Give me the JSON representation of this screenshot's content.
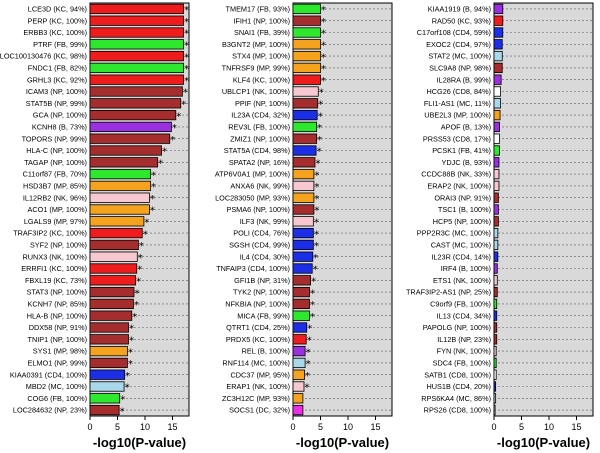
{
  "colors": {
    "KC": "#ee1c1c",
    "MP": "#f5a21f",
    "NP": "#a52d2d",
    "FB": "#2ee82e",
    "NK": "#f7c8cf",
    "B": "#9b30e0",
    "MC": "#a9d8ea",
    "CD4": "#1c2ee6",
    "CD8": "#ffffff",
    "DC": "#ec2fe6",
    "panel_bg": "#d9d9d9",
    "grid": "#5f5f5f"
  },
  "chart_data": [
    {
      "type": "bar",
      "orientation": "horizontal",
      "xlabel": "-log10(P-value)",
      "xlim": [
        0,
        18
      ],
      "xticks": [
        0,
        5,
        10,
        15
      ],
      "significance_marker": "*",
      "bars": [
        {
          "label": "LCE3D (KC, 94%)",
          "value": 17.0,
          "cell": "KC",
          "sig": true
        },
        {
          "label": "PERP (KC, 100%)",
          "value": 17.0,
          "cell": "KC",
          "sig": true
        },
        {
          "label": "ERBB3 (KC, 100%)",
          "value": 17.0,
          "cell": "KC",
          "sig": true
        },
        {
          "label": "PTRF (FB, 99%)",
          "value": 17.0,
          "cell": "FB",
          "sig": true
        },
        {
          "label": "LOC100130476 (KC, 98%)",
          "value": 17.0,
          "cell": "KC",
          "sig": true
        },
        {
          "label": "FNDC1 (FB, 82%)",
          "value": 17.0,
          "cell": "FB",
          "sig": true
        },
        {
          "label": "GRHL3 (KC, 92%)",
          "value": 17.0,
          "cell": "KC",
          "sig": true
        },
        {
          "label": "ICAM3 (NP, 100%)",
          "value": 16.8,
          "cell": "NP",
          "sig": true
        },
        {
          "label": "STAT5B (NP, 99%)",
          "value": 16.5,
          "cell": "NP",
          "sig": true
        },
        {
          "label": "GCA (NP, 100%)",
          "value": 15.6,
          "cell": "NP",
          "sig": true
        },
        {
          "label": "KCNH8 (B, 73%)",
          "value": 14.8,
          "cell": "B",
          "sig": true
        },
        {
          "label": "TOPORS (NP, 99%)",
          "value": 14.5,
          "cell": "NP",
          "sig": true
        },
        {
          "label": "HLA-C (NP, 100%)",
          "value": 13.0,
          "cell": "NP",
          "sig": true
        },
        {
          "label": "TAGAP (NP, 100%)",
          "value": 12.3,
          "cell": "NP",
          "sig": true
        },
        {
          "label": "C11orf87 (FB, 70%)",
          "value": 11.0,
          "cell": "FB",
          "sig": true
        },
        {
          "label": "HSD3B7 (MP, 85%)",
          "value": 11.0,
          "cell": "MP",
          "sig": true
        },
        {
          "label": "IL12RB2 (NK, 96%)",
          "value": 10.8,
          "cell": "NK",
          "sig": true
        },
        {
          "label": "ACO1 (MP, 100%)",
          "value": 10.8,
          "cell": "MP",
          "sig": true
        },
        {
          "label": "LGALS9 (MP, 97%)",
          "value": 9.8,
          "cell": "MP",
          "sig": true
        },
        {
          "label": "TRAF3IP2 (KC, 100%)",
          "value": 9.5,
          "cell": "KC",
          "sig": true
        },
        {
          "label": "SYF2 (NP, 100%)",
          "value": 8.8,
          "cell": "NP",
          "sig": true
        },
        {
          "label": "RUNX3 (NK, 100%)",
          "value": 8.6,
          "cell": "NK",
          "sig": true
        },
        {
          "label": "ERRFI1 (KC, 100%)",
          "value": 8.5,
          "cell": "KC",
          "sig": true
        },
        {
          "label": "FBXL19 (KC, 73%)",
          "value": 8.3,
          "cell": "KC",
          "sig": true
        },
        {
          "label": "STAT3 (NP, 100%)",
          "value": 8.0,
          "cell": "NP",
          "sig": true
        },
        {
          "label": "KCNH7 (NP, 85%)",
          "value": 7.9,
          "cell": "NP",
          "sig": true
        },
        {
          "label": "HLA-B (NP, 100%)",
          "value": 7.6,
          "cell": "NP",
          "sig": true
        },
        {
          "label": "DDX58 (NP, 91%)",
          "value": 7.0,
          "cell": "NP",
          "sig": true
        },
        {
          "label": "TNIP1 (NP, 100%)",
          "value": 7.0,
          "cell": "NP",
          "sig": true
        },
        {
          "label": "SYS1 (MP, 98%)",
          "value": 6.8,
          "cell": "MP",
          "sig": true
        },
        {
          "label": "ELMO1 (NP, 99%)",
          "value": 6.8,
          "cell": "NP",
          "sig": true
        },
        {
          "label": "KIAA0391 (CD4, 100%)",
          "value": 6.3,
          "cell": "CD4",
          "sig": true
        },
        {
          "label": "MBD2 (MC, 100%)",
          "value": 6.2,
          "cell": "MC",
          "sig": true
        },
        {
          "label": "COG6 (FB, 100%)",
          "value": 5.4,
          "cell": "FB",
          "sig": true
        },
        {
          "label": "LOC284632 (NP, 23%)",
          "value": 5.3,
          "cell": "NP",
          "sig": true
        }
      ]
    },
    {
      "type": "bar",
      "orientation": "horizontal",
      "xlabel": "-log10(P-value)",
      "xlim": [
        0,
        18
      ],
      "xticks": [
        0,
        5,
        10,
        15
      ],
      "significance_marker": "*",
      "bars": [
        {
          "label": "TMEM17 (FB, 93%)",
          "value": 5.0,
          "cell": "FB",
          "sig": true
        },
        {
          "label": "IFIH1 (NP, 100%)",
          "value": 5.0,
          "cell": "NP",
          "sig": true
        },
        {
          "label": "SNAI1 (FB, 39%)",
          "value": 5.0,
          "cell": "FB",
          "sig": true
        },
        {
          "label": "B3GNT2 (MP, 100%)",
          "value": 5.0,
          "cell": "MP",
          "sig": true
        },
        {
          "label": "STX4 (MP, 100%)",
          "value": 5.0,
          "cell": "MP",
          "sig": true
        },
        {
          "label": "TNFRSF9 (MP, 99%)",
          "value": 5.0,
          "cell": "MP",
          "sig": true
        },
        {
          "label": "KLF4 (KC, 100%)",
          "value": 5.0,
          "cell": "KC",
          "sig": true
        },
        {
          "label": "UBLCP1 (NK, 100%)",
          "value": 4.6,
          "cell": "NK",
          "sig": true
        },
        {
          "label": "PPIF (NP, 100%)",
          "value": 4.5,
          "cell": "NP",
          "sig": true
        },
        {
          "label": "IL23A (CD4, 32%)",
          "value": 4.4,
          "cell": "CD4",
          "sig": true
        },
        {
          "label": "REV3L (FB, 100%)",
          "value": 4.3,
          "cell": "FB",
          "sig": true
        },
        {
          "label": "ZMIZ1 (NP, 100%)",
          "value": 4.3,
          "cell": "NP",
          "sig": true
        },
        {
          "label": "STAT5A (CD4, 98%)",
          "value": 4.2,
          "cell": "CD4",
          "sig": true
        },
        {
          "label": "SPATA2 (NP, 16%)",
          "value": 4.0,
          "cell": "NP",
          "sig": true
        },
        {
          "label": "ATP6V0A1 (MP, 100%)",
          "value": 3.8,
          "cell": "MP",
          "sig": true
        },
        {
          "label": "ANXA6 (NK, 99%)",
          "value": 3.8,
          "cell": "NK",
          "sig": true
        },
        {
          "label": "LOC283050 (MP, 93%)",
          "value": 3.8,
          "cell": "MP",
          "sig": true
        },
        {
          "label": "PSMA6 (NP, 100%)",
          "value": 3.8,
          "cell": "NP",
          "sig": true
        },
        {
          "label": "ILF3 (NK, 99%)",
          "value": 3.7,
          "cell": "NK",
          "sig": true
        },
        {
          "label": "POLI (CD4, 76%)",
          "value": 3.7,
          "cell": "CD4",
          "sig": true
        },
        {
          "label": "SGSH (CD4, 99%)",
          "value": 3.7,
          "cell": "CD4",
          "sig": true
        },
        {
          "label": "IL4 (CD4, 30%)",
          "value": 3.6,
          "cell": "CD4",
          "sig": true
        },
        {
          "label": "TNFAIP3 (CD4, 100%)",
          "value": 3.5,
          "cell": "CD4",
          "sig": true
        },
        {
          "label": "GFI1B (NP, 31%)",
          "value": 3.2,
          "cell": "NP",
          "sig": true
        },
        {
          "label": "TYK2 (NP, 100%)",
          "value": 3.0,
          "cell": "NP",
          "sig": true
        },
        {
          "label": "NFKBIA (NP, 100%)",
          "value": 3.0,
          "cell": "NP",
          "sig": true
        },
        {
          "label": "MICA (FB, 99%)",
          "value": 3.0,
          "cell": "FB",
          "sig": true
        },
        {
          "label": "QTRT1 (CD4, 25%)",
          "value": 2.5,
          "cell": "CD4",
          "sig": true
        },
        {
          "label": "PRDX5 (KC, 100%)",
          "value": 2.4,
          "cell": "KC",
          "sig": true
        },
        {
          "label": "REL (B, 100%)",
          "value": 2.2,
          "cell": "B",
          "sig": true
        },
        {
          "label": "RNF114 (MC, 100%)",
          "value": 2.2,
          "cell": "MC",
          "sig": true
        },
        {
          "label": "CDC37 (MP, 95%)",
          "value": 2.1,
          "cell": "MP",
          "sig": true
        },
        {
          "label": "ERAP1 (NK, 100%)",
          "value": 2.0,
          "cell": "NK",
          "sig": true
        },
        {
          "label": "ZC3H12C (MP, 93%)",
          "value": 1.8,
          "cell": "MP",
          "sig": false
        },
        {
          "label": "SOCS1 (DC, 32%)",
          "value": 1.8,
          "cell": "DC",
          "sig": false
        }
      ]
    },
    {
      "type": "bar",
      "orientation": "horizontal",
      "xlabel": "-log10(P-value)",
      "xlim": [
        0,
        18
      ],
      "xticks": [
        0,
        5,
        10,
        15
      ],
      "significance_marker": "*",
      "bars": [
        {
          "label": "KIAA1919 (B, 94%)",
          "value": 1.6,
          "cell": "B",
          "sig": false
        },
        {
          "label": "RAD50 (KC, 93%)",
          "value": 1.6,
          "cell": "KC",
          "sig": false
        },
        {
          "label": "C17orf108 (CD4, 59%)",
          "value": 1.6,
          "cell": "CD4",
          "sig": false
        },
        {
          "label": "EXOC2 (CD4, 97%)",
          "value": 1.5,
          "cell": "CD4",
          "sig": false
        },
        {
          "label": "STAT2 (MC, 100%)",
          "value": 1.5,
          "cell": "MC",
          "sig": false
        },
        {
          "label": "SLC9A8 (NP, 98%)",
          "value": 1.5,
          "cell": "NP",
          "sig": false
        },
        {
          "label": "IL28RA (B, 99%)",
          "value": 1.3,
          "cell": "B",
          "sig": false
        },
        {
          "label": "HCG26 (CD8, 84%)",
          "value": 1.2,
          "cell": "CD8",
          "sig": false
        },
        {
          "label": "FLI1-AS1 (MC, 11%)",
          "value": 1.2,
          "cell": "MC",
          "sig": false
        },
        {
          "label": "UBE2L3 (MP, 100%)",
          "value": 1.1,
          "cell": "MP",
          "sig": false
        },
        {
          "label": "APOF (B, 13%)",
          "value": 1.0,
          "cell": "B",
          "sig": false
        },
        {
          "label": "PRSS53 (CD8, 17%)",
          "value": 1.0,
          "cell": "CD8",
          "sig": false
        },
        {
          "label": "PCSK1 (FB, 41%)",
          "value": 1.0,
          "cell": "FB",
          "sig": false
        },
        {
          "label": "YDJC (B, 93%)",
          "value": 0.9,
          "cell": "B",
          "sig": false
        },
        {
          "label": "CCDC88B (NK, 33%)",
          "value": 0.9,
          "cell": "NK",
          "sig": false
        },
        {
          "label": "ERAP2 (NK, 100%)",
          "value": 0.9,
          "cell": "NK",
          "sig": false
        },
        {
          "label": "ORAI3 (NP, 91%)",
          "value": 0.8,
          "cell": "NP",
          "sig": false
        },
        {
          "label": "TSC1 (B, 100%)",
          "value": 0.8,
          "cell": "B",
          "sig": false
        },
        {
          "label": "HCP5 (NP, 100%)",
          "value": 0.8,
          "cell": "NP",
          "sig": false
        },
        {
          "label": "PPP2R3C (MC, 100%)",
          "value": 0.7,
          "cell": "MC",
          "sig": false
        },
        {
          "label": "CAST (MC, 100%)",
          "value": 0.7,
          "cell": "MC",
          "sig": false
        },
        {
          "label": "IL23R (CD4, 14%)",
          "value": 0.7,
          "cell": "CD4",
          "sig": false
        },
        {
          "label": "IRF4 (B, 100%)",
          "value": 0.6,
          "cell": "B",
          "sig": false
        },
        {
          "label": "ETS1 (NK, 100%)",
          "value": 0.6,
          "cell": "NK",
          "sig": false
        },
        {
          "label": "TRAF3IP2-AS1 (NP, 25%)",
          "value": 0.6,
          "cell": "NP",
          "sig": false
        },
        {
          "label": "C9orf9 (FB, 100%)",
          "value": 0.5,
          "cell": "FB",
          "sig": false
        },
        {
          "label": "IL13 (CD4, 34%)",
          "value": 0.5,
          "cell": "CD4",
          "sig": false
        },
        {
          "label": "PAPOLG (NP, 100%)",
          "value": 0.5,
          "cell": "NP",
          "sig": false
        },
        {
          "label": "IL12B (NP, 23%)",
          "value": 0.5,
          "cell": "NP",
          "sig": false
        },
        {
          "label": "FYN (NK, 100%)",
          "value": 0.4,
          "cell": "NK",
          "sig": false
        },
        {
          "label": "SDC4 (FB, 100%)",
          "value": 0.4,
          "cell": "FB",
          "sig": false
        },
        {
          "label": "SATB1 (CD8, 100%)",
          "value": 0.4,
          "cell": "CD8",
          "sig": false
        },
        {
          "label": "HUS1B (CD4, 20%)",
          "value": 0.3,
          "cell": "CD4",
          "sig": false
        },
        {
          "label": "RPS6KA4 (MC, 86%)",
          "value": 0.3,
          "cell": "MC",
          "sig": false
        },
        {
          "label": "RPS26 (CD8, 100%)",
          "value": 0.2,
          "cell": "CD8",
          "sig": false
        }
      ]
    }
  ]
}
